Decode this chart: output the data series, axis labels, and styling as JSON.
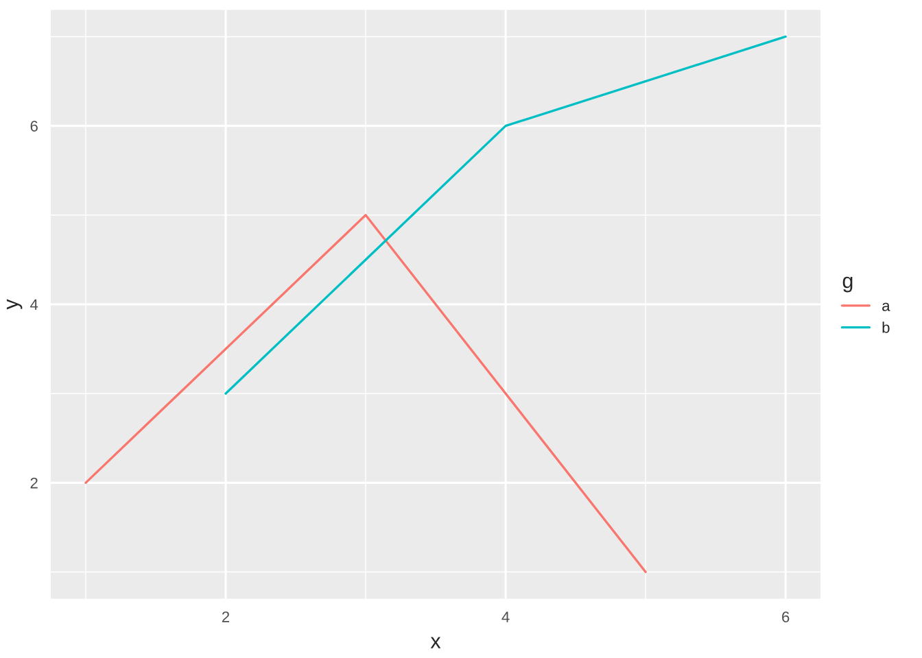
{
  "chart_data": {
    "type": "line",
    "xlabel": "x",
    "ylabel": "y",
    "legend_title": "g",
    "series": [
      {
        "name": "a",
        "color": "#f8766d",
        "x": [
          1,
          3,
          5
        ],
        "values": [
          2,
          5,
          1
        ]
      },
      {
        "name": "b",
        "color": "#00bfc4",
        "x": [
          2,
          4,
          6
        ],
        "values": [
          3,
          6,
          7
        ]
      }
    ],
    "xlim": [
      0.75,
      6.25
    ],
    "xticks": [
      2,
      4,
      6
    ],
    "ylim": [
      0.7,
      7.3
    ],
    "yticks": [
      2,
      4,
      6
    ],
    "grid": true,
    "legend": "right",
    "marker": "none",
    "line_style": "solid"
  }
}
